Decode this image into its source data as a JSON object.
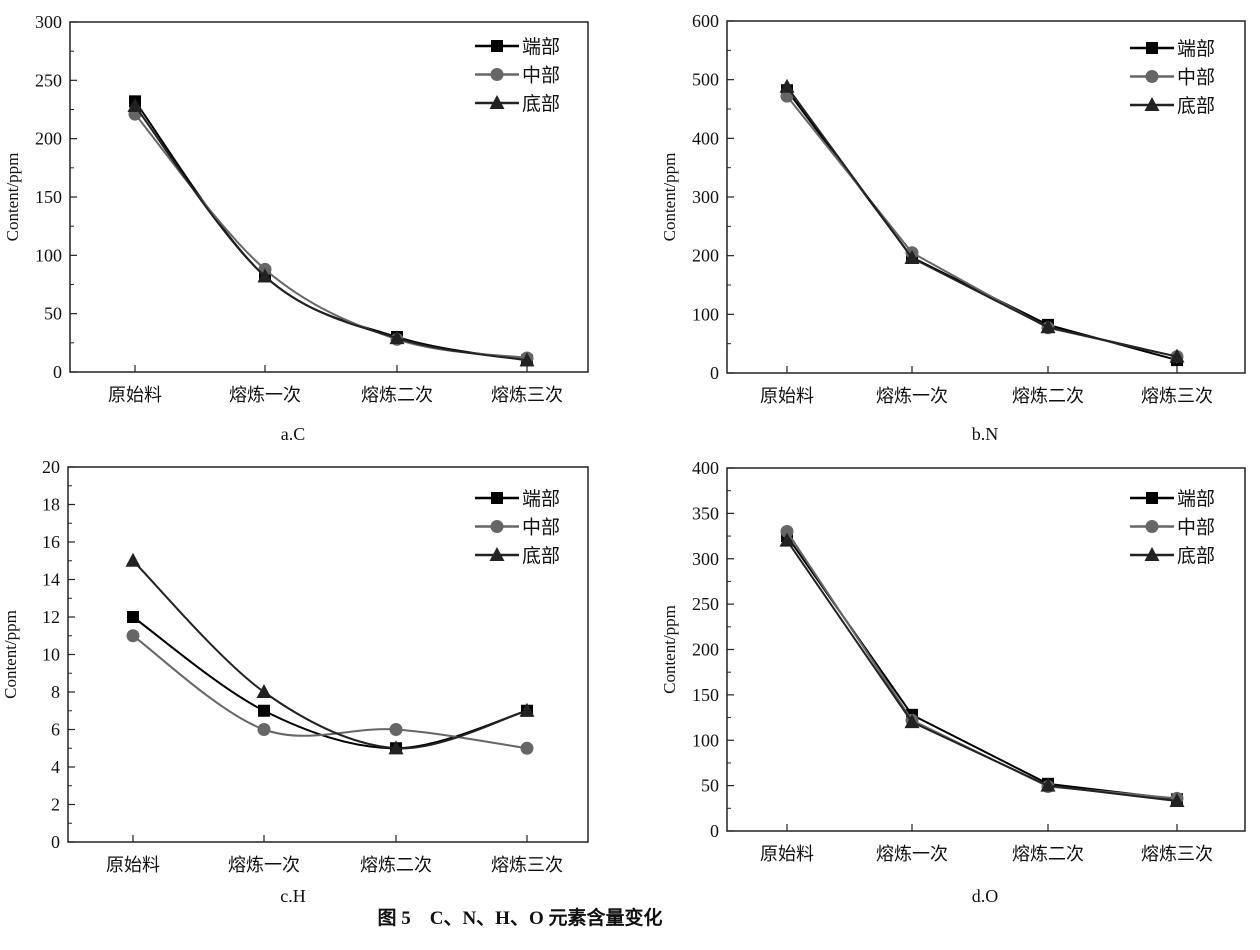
{
  "figure_caption": "图 5　C、N、H、O 元素含量变化",
  "chart_data": [
    {
      "type": "line",
      "panel_label": "a.C",
      "smooth": true,
      "categories": [
        "原始料",
        "熔炼一次",
        "熔炼二次",
        "熔炼三次"
      ],
      "ylabel": "Content/ppm",
      "ylim": [
        0,
        300
      ],
      "yticks": [
        0,
        50,
        100,
        150,
        200,
        250,
        300
      ],
      "legend": "top-right",
      "grid": false,
      "series": [
        {
          "name": "端部",
          "marker": "square",
          "color": "#000000",
          "values": [
            232,
            82,
            30,
            10
          ]
        },
        {
          "name": "中部",
          "marker": "circle",
          "color": "#666666",
          "values": [
            221,
            88,
            28,
            12
          ]
        },
        {
          "name": "底部",
          "marker": "triangle",
          "color": "#222222",
          "values": [
            228,
            82,
            29,
            10
          ]
        }
      ]
    },
    {
      "type": "line",
      "panel_label": "b.N",
      "smooth": false,
      "categories": [
        "原始料",
        "熔炼一次",
        "熔炼二次",
        "熔炼三次"
      ],
      "ylabel": "Content/ppm",
      "ylim": [
        0,
        600
      ],
      "yticks": [
        0,
        100,
        200,
        300,
        400,
        500,
        600
      ],
      "legend": "top-right",
      "grid": false,
      "series": [
        {
          "name": "端部",
          "marker": "square",
          "color": "#000000",
          "values": [
            482,
            197,
            82,
            22
          ]
        },
        {
          "name": "中部",
          "marker": "circle",
          "color": "#666666",
          "values": [
            472,
            205,
            77,
            28
          ]
        },
        {
          "name": "底部",
          "marker": "triangle",
          "color": "#222222",
          "values": [
            488,
            196,
            78,
            28
          ]
        }
      ]
    },
    {
      "type": "line",
      "panel_label": "c.H",
      "smooth": true,
      "categories": [
        "原始料",
        "熔炼一次",
        "熔炼二次",
        "熔炼三次"
      ],
      "ylabel": "Content/ppm",
      "ylim": [
        0,
        20
      ],
      "yticks": [
        0,
        2,
        4,
        6,
        8,
        10,
        12,
        14,
        16,
        18,
        20
      ],
      "legend": "top-right",
      "grid": false,
      "series": [
        {
          "name": "端部",
          "marker": "square",
          "color": "#000000",
          "values": [
            12,
            7,
            5,
            7
          ]
        },
        {
          "name": "中部",
          "marker": "circle",
          "color": "#666666",
          "values": [
            11,
            6,
            6,
            5
          ]
        },
        {
          "name": "底部",
          "marker": "triangle",
          "color": "#222222",
          "values": [
            15,
            8,
            5,
            7
          ]
        }
      ]
    },
    {
      "type": "line",
      "panel_label": "d.O",
      "smooth": false,
      "categories": [
        "原始料",
        "熔炼一次",
        "熔炼二次",
        "熔炼三次"
      ],
      "ylabel": "Content/ppm",
      "ylim": [
        0,
        400
      ],
      "yticks": [
        0,
        50,
        100,
        150,
        200,
        250,
        300,
        350,
        400
      ],
      "legend": "top-right",
      "grid": false,
      "series": [
        {
          "name": "端部",
          "marker": "square",
          "color": "#000000",
          "values": [
            325,
            128,
            52,
            35
          ]
        },
        {
          "name": "中部",
          "marker": "circle",
          "color": "#666666",
          "values": [
            330,
            122,
            49,
            36
          ]
        },
        {
          "name": "底部",
          "marker": "triangle",
          "color": "#222222",
          "values": [
            320,
            120,
            50,
            33
          ]
        }
      ]
    }
  ]
}
